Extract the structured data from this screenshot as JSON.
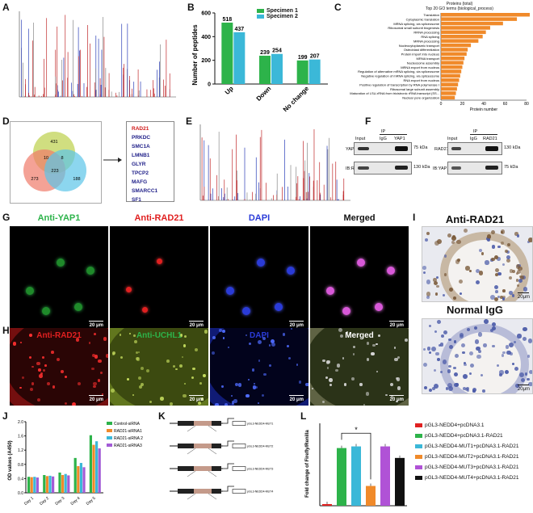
{
  "panels": {
    "A": "A",
    "B": "B",
    "C": "C",
    "D": "D",
    "E": "E",
    "F": "F",
    "G": "G",
    "H": "H",
    "I": "I",
    "J": "J",
    "K": "K",
    "L": "L"
  },
  "panel_b": {
    "legend": [
      "Specimen 1",
      "Specimen 2"
    ],
    "colors": [
      "#2db34a",
      "#3bb8d8"
    ]
  },
  "panel_c": {
    "title_line1": "Proteins (total)",
    "title_line2": "Top 20 GO terms (biological_process)",
    "bar_color": "#f08a2a"
  },
  "panel_d": {
    "venn_numbers": [
      "431",
      "10",
      "8",
      "223",
      "273",
      "188"
    ],
    "genes": [
      "RAD21",
      "PRKDC",
      "SMC1A",
      "LMNB1",
      "GLYR",
      "TPCP2",
      "MAFG",
      "SMARCC1",
      "SF1"
    ]
  },
  "panel_f": {
    "left": {
      "input": "Input",
      "ip": "IP",
      "igg": "IgG",
      "ab": "YAP1",
      "row1": "YAP1",
      "row2": "IB:RAD21",
      "kda1": "75 kDa",
      "kda2": "130 kDa"
    },
    "right": {
      "input": "Input",
      "ip": "IP",
      "igg": "IgG",
      "ab": "RAD21",
      "row1": "RAD21",
      "row2": "IB:YAP1",
      "kda1": "130 kDa",
      "kda2": "75 kDa"
    }
  },
  "panel_g": {
    "titles": [
      "Anti-YAP1",
      "Anti-RAD21",
      "DAPI",
      "Merged"
    ],
    "title_colors": [
      "#2db34a",
      "#e02020",
      "#2a3bd8",
      "#111111"
    ],
    "scale": "20 μm"
  },
  "panel_h": {
    "titles": [
      "Anti-RAD21",
      "Anti-UCHL1",
      "DAPI",
      "Merged"
    ],
    "title_colors": [
      "#e02020",
      "#2db34a",
      "#2a3bd8",
      "#111111"
    ],
    "scale": "20 μm"
  },
  "panel_i": {
    "titles": [
      "Anti-RAD21",
      "Normal IgG"
    ],
    "scale": "20μm"
  },
  "panel_k": {
    "rows": [
      "pGL3-NEDD4-MUT1",
      "pGL3-NEDD4-MUT2",
      "pGL3-NEDD4-MUT3",
      "pGL3-NEDD4-MUT4"
    ]
  },
  "chart_data": [
    {
      "type": "bar",
      "panel": "B",
      "categories": [
        "Up",
        "Down",
        "No change"
      ],
      "series": [
        {
          "name": "Specimen 1",
          "values": [
            518,
            239,
            199
          ]
        },
        {
          "name": "Specimen 2",
          "values": [
            437,
            254,
            207
          ]
        }
      ],
      "ylabel": "Number of peptides",
      "ylim": [
        0,
        600
      ],
      "yticks": [
        0,
        200,
        400,
        600
      ]
    },
    {
      "type": "bar",
      "panel": "C",
      "orientation": "horizontal",
      "categories": [
        "Translation",
        "Cytoplasmic translation",
        "MRNA splicing, via spliceosome",
        "Ribosomal small subunit biogenesis",
        "RRNA processing",
        "RNA splicing",
        "MRNA processing",
        "Nucleocytoplasmic transport",
        "Osteoblast differentiation",
        "Protein import into nucleus",
        "MRNA transport",
        "Nucleosome assembly",
        "MRNA export from nucleus",
        "Regulation of alternative mRNA splicing, via spliceosome",
        "Negative regulation of mRNA splicing, via spliceosome",
        "RNA export from nucleus",
        "Positive regulation of transcription by RNA polymerase I",
        "Ribosomal large subunit assembly",
        "Maturation of LSU-rRNA from tricistronic rRNA transcript (SS...",
        "Nuclear pore organization"
      ],
      "values": [
        83,
        71,
        58,
        46,
        42,
        39,
        35,
        28,
        25,
        24,
        22,
        21,
        20,
        19,
        18,
        17,
        16,
        15,
        14,
        13
      ],
      "xlabel": "Protein number",
      "xlim": [
        0,
        80
      ],
      "xticks": [
        0,
        20,
        40,
        60,
        80
      ]
    },
    {
      "type": "bar",
      "panel": "J",
      "categories": [
        "Day 1",
        "Day 2",
        "Day 3",
        "Day 4",
        "Day 5"
      ],
      "series": [
        {
          "name": "Control-siRNA",
          "values": [
            0.45,
            0.5,
            0.57,
            0.98,
            1.62
          ]
        },
        {
          "name": "RAD21-siRNA1",
          "values": [
            0.44,
            0.47,
            0.5,
            0.75,
            1.35
          ]
        },
        {
          "name": "RAD21-siRNA 2",
          "values": [
            0.45,
            0.48,
            0.53,
            0.84,
            1.45
          ]
        },
        {
          "name": "RAD21-siRNA3",
          "values": [
            0.43,
            0.46,
            0.49,
            0.72,
            1.25
          ]
        }
      ],
      "colors": [
        "#2db34a",
        "#f08a2a",
        "#3bb8d8",
        "#a35bd6"
      ],
      "ylabel": "OD values (A450)",
      "ylim": [
        0,
        2.0
      ],
      "yticks": [
        0,
        0.4,
        0.8,
        1.2,
        1.6,
        2.0
      ]
    },
    {
      "type": "bar",
      "panel": "L",
      "categories": [
        "pGL3-NEDD4+pcDNA3.1",
        "pGL3-NEDD4+pcDNA3.1-RAD21",
        "pGL3-NEDD4-MUT1+pcDNA3.1-RAD21",
        "pGL3-NEDD4-MUT2+pcDNA3.1-RAD21",
        "pGL3-NEDD4-MUT3+pcDNA3.1-RAD21",
        "pGL3-NEDD4-MUT4+pcDNA3.1-RAD21"
      ],
      "values": [
        1,
        35,
        36,
        12,
        36,
        29
      ],
      "colors": [
        "#e02020",
        "#2db34a",
        "#3bb8d8",
        "#f08a2a",
        "#b052d6",
        "#111111"
      ],
      "ylabel": "Fold change of Firefly/Renilla",
      "ylim": [
        0,
        50
      ],
      "yticks": [
        0,
        10,
        20,
        30,
        40,
        50
      ],
      "annotation": "*"
    }
  ]
}
